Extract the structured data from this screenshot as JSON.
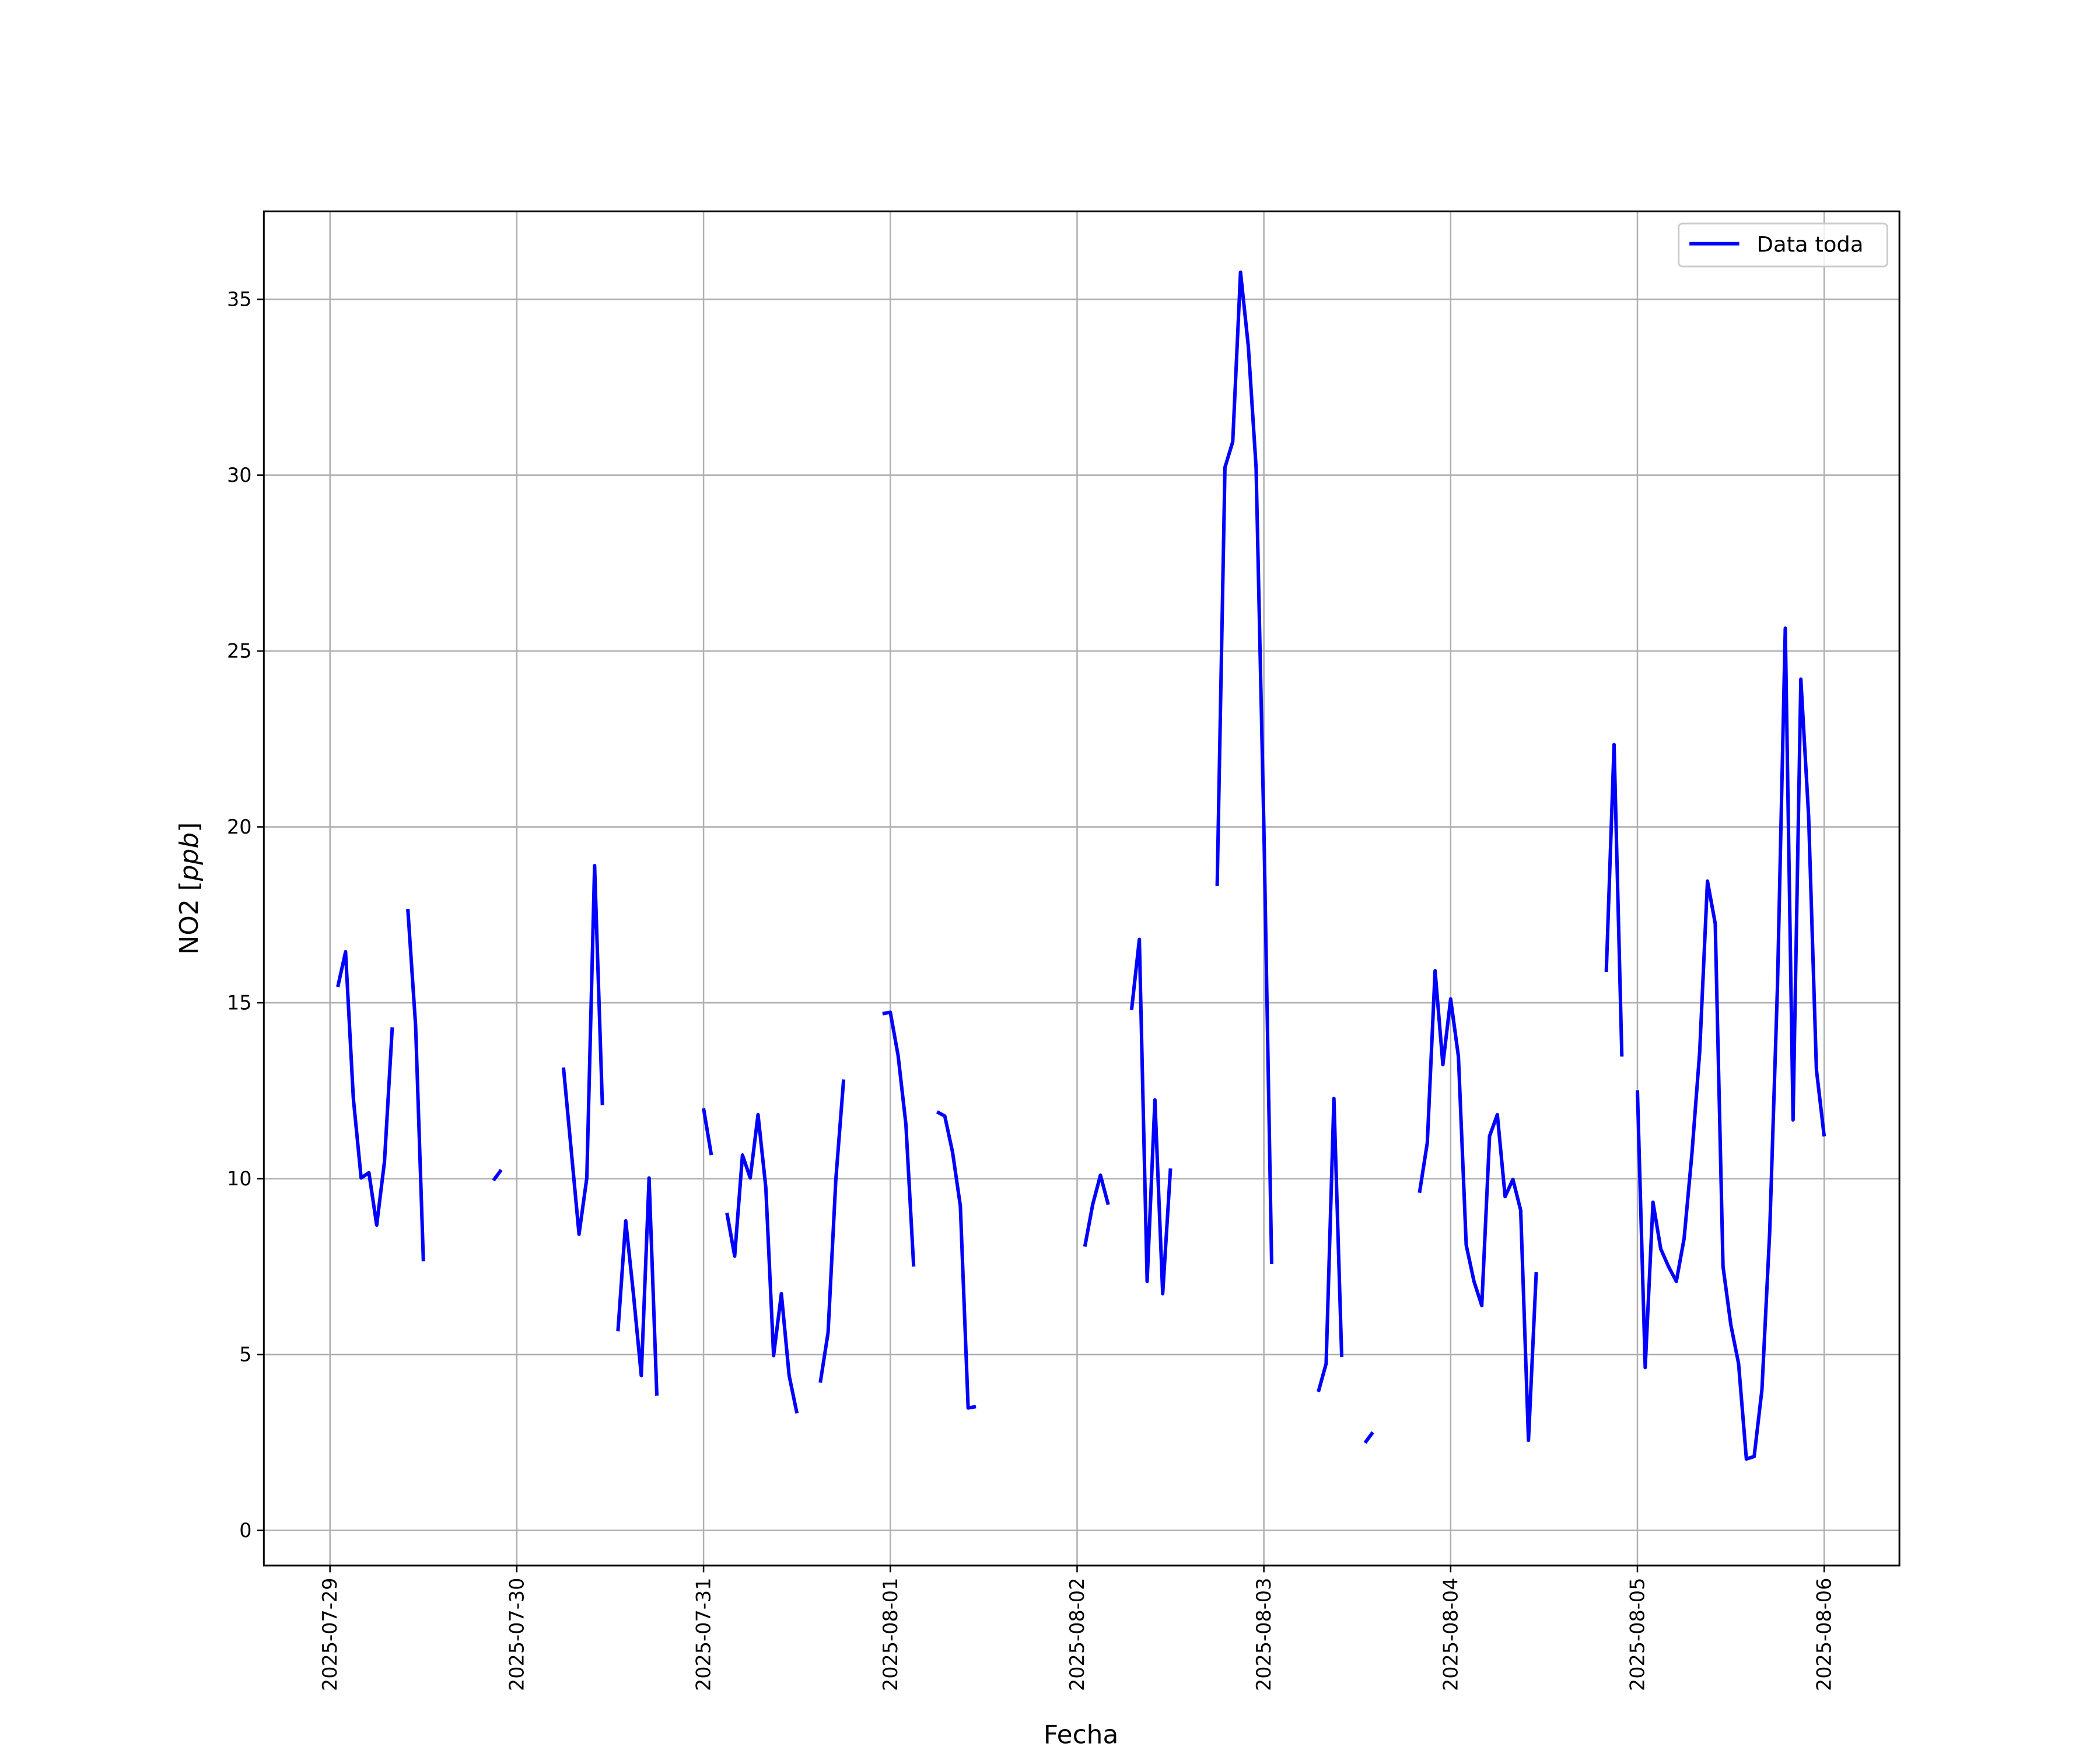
{
  "chart_data": {
    "type": "line",
    "title": "",
    "xlabel": "Fecha",
    "ylabel": "NO2 [",
    "ylabel_italic": "ppb",
    "ylabel_end": "]",
    "xlim": [
      "2025-07-28 15:30",
      "2025-08-06 09:40"
    ],
    "ylim": [
      -1,
      37.5
    ],
    "grid": true,
    "legend_position": "top-right",
    "x_ticks": [
      "2025-07-29",
      "2025-07-30",
      "2025-07-31",
      "2025-08-01",
      "2025-08-02",
      "2025-08-03",
      "2025-08-04",
      "2025-08-05",
      "2025-08-06"
    ],
    "y_ticks": [
      0,
      5,
      10,
      15,
      20,
      25,
      30,
      35
    ],
    "series": [
      {
        "name": "Data toda",
        "color": "#0000ff",
        "segments": [
          [
            [
              "2025-07-29 01:00",
              15.45
            ],
            [
              "2025-07-29 02:00",
              16.45
            ],
            [
              "2025-07-29 03:00",
              12.28
            ],
            [
              "2025-07-29 04:00",
              10.02
            ],
            [
              "2025-07-29 05:00",
              10.17
            ],
            [
              "2025-07-29 06:00",
              8.68
            ],
            [
              "2025-07-29 07:00",
              10.48
            ],
            [
              "2025-07-29 08:00",
              14.3
            ]
          ],
          [
            [
              "2025-07-29 10:00",
              17.67
            ],
            [
              "2025-07-29 11:00",
              14.35
            ],
            [
              "2025-07-29 12:00",
              7.65
            ]
          ],
          [
            [
              "2025-07-29 21:00",
              9.95
            ],
            [
              "2025-07-29 22:00",
              10.25
            ]
          ],
          [
            [
              "2025-07-30 06:00",
              13.16
            ],
            [
              "2025-07-30 07:00",
              10.8
            ],
            [
              "2025-07-30 08:00",
              8.42
            ],
            [
              "2025-07-30 09:00",
              10.02
            ],
            [
              "2025-07-30 10:00",
              18.9
            ],
            [
              "2025-07-30 11:00",
              12.09
            ]
          ],
          [
            [
              "2025-07-30 13:00",
              5.66
            ],
            [
              "2025-07-30 14:00",
              8.8
            ],
            [
              "2025-07-30 15:00",
              6.7
            ],
            [
              "2025-07-30 16:00",
              4.4
            ],
            [
              "2025-07-30 17:00",
              10.02
            ],
            [
              "2025-07-30 18:00",
              3.83
            ]
          ],
          [
            [
              "2025-07-31 00:00",
              12.0
            ],
            [
              "2025-07-31 01:00",
              10.67
            ]
          ],
          [
            [
              "2025-07-31 03:00",
              9.03
            ],
            [
              "2025-07-31 04:00",
              7.8
            ],
            [
              "2025-07-31 05:00",
              10.67
            ],
            [
              "2025-07-31 06:00",
              10.02
            ],
            [
              "2025-07-31 07:00",
              11.82
            ],
            [
              "2025-07-31 08:00",
              9.75
            ],
            [
              "2025-07-31 09:00",
              4.97
            ],
            [
              "2025-07-31 10:00",
              6.73
            ],
            [
              "2025-07-31 11:00",
              4.4
            ],
            [
              "2025-07-31 12:00",
              3.33
            ]
          ],
          [
            [
              "2025-07-31 15:00",
              4.2
            ],
            [
              "2025-07-31 16:00",
              5.62
            ],
            [
              "2025-07-31 17:00",
              9.98
            ],
            [
              "2025-07-31 18:00",
              12.82
            ]
          ],
          [
            [
              "2025-07-31 23:00",
              14.69
            ],
            [
              "2025-08-01 00:00",
              14.73
            ],
            [
              "2025-08-01 01:00",
              13.5
            ],
            [
              "2025-08-01 02:00",
              11.55
            ],
            [
              "2025-08-01 03:00",
              7.5
            ]
          ],
          [
            [
              "2025-08-01 06:00",
              11.9
            ],
            [
              "2025-08-01 07:00",
              11.78
            ],
            [
              "2025-08-01 08:00",
              10.75
            ],
            [
              "2025-08-01 09:00",
              9.22
            ],
            [
              "2025-08-01 10:00",
              3.48
            ],
            [
              "2025-08-01 11:00",
              3.52
            ]
          ],
          [
            [
              "2025-08-02 01:00",
              8.07
            ],
            [
              "2025-08-02 02:00",
              9.26
            ],
            [
              "2025-08-02 03:00",
              10.1
            ],
            [
              "2025-08-02 04:00",
              9.26
            ]
          ],
          [
            [
              "2025-08-02 07:00",
              14.8
            ],
            [
              "2025-08-02 08:00",
              16.8
            ],
            [
              "2025-08-02 09:00",
              7.08
            ],
            [
              "2025-08-02 10:00",
              12.24
            ],
            [
              "2025-08-02 11:00",
              6.73
            ],
            [
              "2025-08-02 12:00",
              10.29
            ]
          ],
          [
            [
              "2025-08-02 18:00",
              18.32
            ],
            [
              "2025-08-02 19:00",
              30.22
            ],
            [
              "2025-08-02 20:00",
              30.95
            ],
            [
              "2025-08-02 21:00",
              35.77
            ],
            [
              "2025-08-02 22:00",
              33.67
            ],
            [
              "2025-08-02 23:00",
              30.22
            ],
            [
              "2025-08-03 00:00",
              20.0
            ],
            [
              "2025-08-03 01:00",
              7.57
            ]
          ],
          [
            [
              "2025-08-03 07:00",
              3.94
            ],
            [
              "2025-08-03 08:00",
              4.74
            ],
            [
              "2025-08-03 09:00",
              12.28
            ],
            [
              "2025-08-03 10:00",
              4.93
            ]
          ],
          [
            [
              "2025-08-03 13:00",
              2.49
            ],
            [
              "2025-08-03 14:00",
              2.79
            ]
          ],
          [
            [
              "2025-08-03 20:00",
              9.6
            ],
            [
              "2025-08-03 21:00",
              11.02
            ],
            [
              "2025-08-03 22:00",
              15.91
            ],
            [
              "2025-08-03 23:00",
              13.24
            ],
            [
              "2025-08-04 00:00",
              15.11
            ],
            [
              "2025-08-04 01:00",
              13.47
            ],
            [
              "2025-08-04 02:00",
              8.11
            ],
            [
              "2025-08-04 03:00",
              7.08
            ],
            [
              "2025-08-04 04:00",
              6.39
            ],
            [
              "2025-08-04 05:00",
              11.21
            ],
            [
              "2025-08-04 06:00",
              11.82
            ],
            [
              "2025-08-04 07:00",
              9.49
            ],
            [
              "2025-08-04 08:00",
              9.98
            ],
            [
              "2025-08-04 09:00",
              9.1
            ],
            [
              "2025-08-04 10:00",
              2.56
            ],
            [
              "2025-08-04 11:00",
              7.34
            ]
          ],
          [
            [
              "2025-08-04 20:00",
              15.88
            ],
            [
              "2025-08-04 21:00",
              22.34
            ],
            [
              "2025-08-04 22:00",
              13.47
            ]
          ],
          [
            [
              "2025-08-05 00:00",
              12.51
            ],
            [
              "2025-08-05 01:00",
              4.63
            ],
            [
              "2025-08-05 02:00",
              9.33
            ],
            [
              "2025-08-05 03:00",
              8.0
            ],
            [
              "2025-08-05 04:00",
              7.5
            ],
            [
              "2025-08-05 05:00",
              7.08
            ],
            [
              "2025-08-05 06:00",
              8.3
            ],
            [
              "2025-08-05 07:00",
              10.7
            ],
            [
              "2025-08-05 08:00",
              13.6
            ],
            [
              "2025-08-05 09:00",
              18.46
            ],
            [
              "2025-08-05 10:00",
              17.25
            ],
            [
              "2025-08-05 11:00",
              7.5
            ],
            [
              "2025-08-05 12:00",
              5.85
            ],
            [
              "2025-08-05 13:00",
              4.74
            ],
            [
              "2025-08-05 14:00",
              2.03
            ],
            [
              "2025-08-05 15:00",
              2.1
            ],
            [
              "2025-08-05 16:00",
              4.0
            ],
            [
              "2025-08-05 17:00",
              8.5
            ],
            [
              "2025-08-05 18:00",
              15.5
            ],
            [
              "2025-08-05 19:00",
              25.65
            ],
            [
              "2025-08-05 20:00",
              11.67
            ],
            [
              "2025-08-05 21:00",
              24.2
            ],
            [
              "2025-08-05 22:00",
              20.3
            ],
            [
              "2025-08-05 23:00",
              13.1
            ],
            [
              "2025-08-06 00:00",
              11.2
            ]
          ]
        ]
      }
    ]
  }
}
